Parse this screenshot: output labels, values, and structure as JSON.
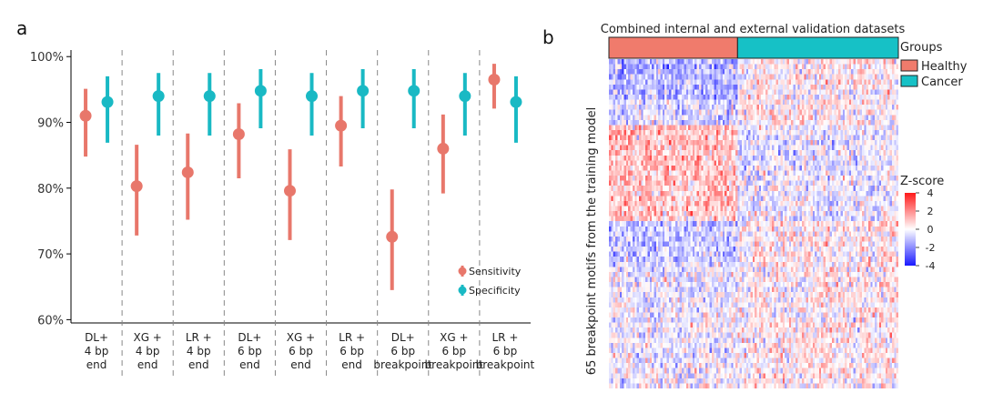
{
  "chart_data": [
    {
      "panel": "a",
      "type": "scatter",
      "title": "",
      "xlabel": "",
      "ylabel": "",
      "y_ticks": [
        "60%",
        "70%",
        "80%",
        "90%",
        "100%"
      ],
      "ylim": [
        59.5,
        101
      ],
      "categories": [
        [
          "DL+",
          "4 bp",
          "end"
        ],
        [
          "XG +",
          "4 bp",
          "end"
        ],
        [
          "LR +",
          "4 bp",
          "end"
        ],
        [
          "DL+",
          "6 bp",
          "end"
        ],
        [
          "XG +",
          "6 bp",
          "end"
        ],
        [
          "LR +",
          "6 bp",
          "end"
        ],
        [
          "DL+",
          "6 bp",
          "breakpoint"
        ],
        [
          "XG +",
          "6 bp",
          "breakpoint"
        ],
        [
          "LR +",
          "6 bp",
          "breakpoint"
        ]
      ],
      "series": [
        {
          "name": "Sensitivity",
          "color": "#e8776b",
          "values": [
            91.0,
            80.3,
            82.4,
            88.2,
            79.6,
            89.5,
            72.6,
            86.0,
            96.5
          ],
          "lower": [
            84.8,
            72.8,
            75.2,
            81.5,
            72.1,
            83.3,
            64.5,
            79.2,
            92.1
          ],
          "upper": [
            95.1,
            86.6,
            88.3,
            92.9,
            85.9,
            94.0,
            79.8,
            91.2,
            98.9
          ]
        },
        {
          "name": "Specificity",
          "color": "#19b9c4",
          "values": [
            93.1,
            94.0,
            94.0,
            94.8,
            94.0,
            94.8,
            94.8,
            94.0,
            93.1
          ],
          "lower": [
            86.9,
            88.0,
            88.0,
            89.1,
            88.0,
            89.1,
            89.1,
            88.0,
            86.9
          ],
          "upper": [
            97.0,
            97.5,
            97.5,
            98.1,
            97.5,
            98.1,
            98.1,
            97.5,
            97.0
          ]
        }
      ],
      "legend_position": "bottom-right"
    },
    {
      "panel": "b",
      "type": "heatmap",
      "title": "Combined internal and external validation datasets",
      "ylabel": "65 breakpoint motifs from the training model",
      "n_rows": 65,
      "n_healthy_columns": 60,
      "n_cancer_columns": 75,
      "annotation_title": "Groups",
      "groups": [
        {
          "name": "Healthy",
          "color": "#f07b6c"
        },
        {
          "name": "Cancer",
          "color": "#16c1c6"
        }
      ],
      "color_scale": {
        "title": "Z-score",
        "ticks": [
          "4",
          "2",
          "0",
          "-2",
          "-4"
        ],
        "range": [
          -4,
          4
        ],
        "colors": [
          "#1a1aff",
          "#ffffff",
          "#ff1a1a"
        ]
      }
    }
  ]
}
